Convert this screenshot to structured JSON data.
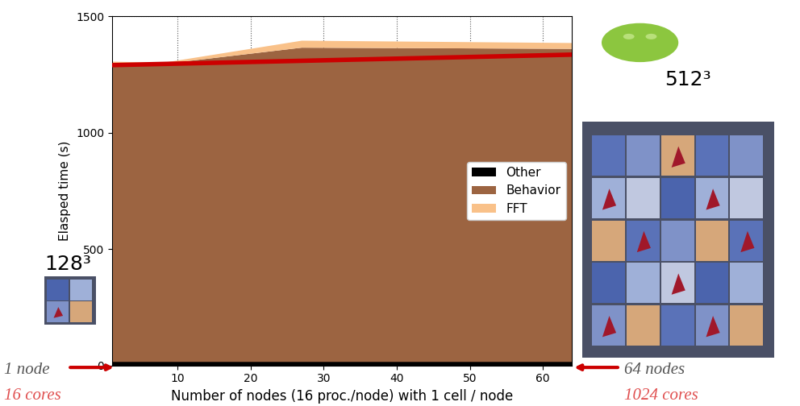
{
  "chart_data": {
    "type": "stacked_area",
    "x": [
      1,
      8,
      27,
      64
    ],
    "series": [
      {
        "name": "Other",
        "color": "#000000",
        "values": [
          15,
          15,
          15,
          15
        ]
      },
      {
        "name": "Behavior",
        "color": "#9c6441",
        "values": [
          1285,
          1280,
          1350,
          1345
        ]
      },
      {
        "name": "FFT",
        "color": "#f9c189",
        "values": [
          5,
          5,
          30,
          25
        ]
      }
    ],
    "stacked": true,
    "trend_line": {
      "x": [
        1,
        64
      ],
      "values": [
        1290,
        1335
      ],
      "color": "#cc0000"
    },
    "xlabel": "Number of nodes (16 proc./node) with 1 cell / node",
    "ylabel": "Elasped time (s)",
    "xlim": [
      1,
      64
    ],
    "xticks": [
      10,
      20,
      30,
      40,
      50,
      60
    ],
    "ylim": [
      0,
      1500
    ],
    "yticks": [
      0,
      500,
      1000,
      1500
    ],
    "grid": true,
    "legend": "center right",
    "annotations": [
      "128³",
      "512³",
      "1 node",
      "16 cores",
      "64 nodes",
      "1024 cores"
    ]
  }
}
